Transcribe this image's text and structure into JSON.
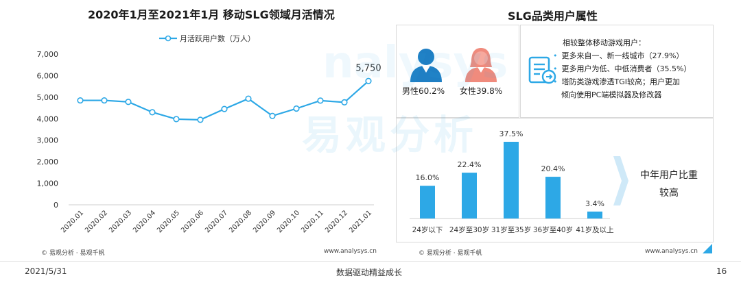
{
  "left_panel": {
    "source": "© 易观分析 · 易观千帆",
    "url": "www.analysys.cn"
  },
  "right_panel": {
    "title": "SLG品类用户属性",
    "male_label": "男性60.2%",
    "female_label": "女性39.8%",
    "note_title": "相较整体移动游戏用户：",
    "note_items": [
      "更多来自一、新一线城市（27.9%）",
      "更多用户为低、中低消费者（35.5%）",
      "塔防类游戏渗透TGI较高；用户更加",
      "倾向使用PC端模拟器及修改器"
    ],
    "highlight_line1": "中年用户比重",
    "highlight_line2": "较高",
    "source": "© 易观分析 · 易观千帆",
    "url": "www.analysys.cn"
  },
  "watermark": {
    "brand": "易观分析",
    "latin": "nalysys"
  },
  "footer": {
    "date": "2021/5/31",
    "slogan": "数据驱动精益成长",
    "page": "16"
  },
  "colors": {
    "line": "#2da8e6",
    "bar": "#2da8e6",
    "male": "#1f7fc4",
    "female": "#f08b7d"
  },
  "chart_data": [
    {
      "type": "line",
      "title": "2020年1月至2021年1月 移动SLG领域月活情况",
      "legend": "top",
      "series": [
        {
          "name": "月活跃用户数（万人）",
          "values": [
            4850,
            4850,
            4780,
            4300,
            3980,
            3950,
            4450,
            4930,
            4130,
            4470,
            4840,
            4760,
            5750
          ]
        }
      ],
      "categories": [
        "2020.01",
        "2020.02",
        "2020.03",
        "2020.04",
        "2020.05",
        "2020.06",
        "2020.07",
        "2020.08",
        "2020.09",
        "2020.10",
        "2020.11",
        "2020.12",
        "2021.01"
      ],
      "annotation": "5,750",
      "ylim": [
        0,
        7000
      ],
      "yticks": [
        "0",
        "1,000",
        "2,000",
        "3,000",
        "4,000",
        "5,000",
        "6,000",
        "7,000"
      ],
      "grid": false
    },
    {
      "type": "bar",
      "categories": [
        "24岁以下",
        "24岁至30岁",
        "31岁至35岁",
        "36岁至40岁",
        "41岁及以上"
      ],
      "values": [
        16.0,
        22.4,
        37.5,
        20.4,
        3.4
      ],
      "value_labels": [
        "16.0%",
        "22.4%",
        "37.5%",
        "20.4%",
        "3.4%"
      ],
      "ylim": [
        0,
        37.5
      ],
      "grid": false
    }
  ]
}
